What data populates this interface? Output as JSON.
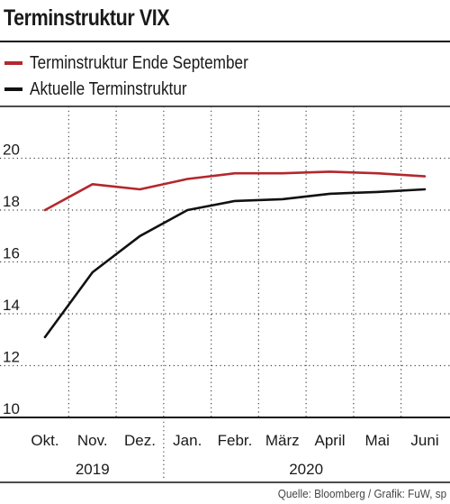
{
  "title": "Terminstruktur VIX",
  "source": "Quelle: Bloomberg / Grafik: FuW, sp",
  "colors": {
    "series_0": "#b3282d",
    "series_1": "#111111",
    "grid": "#444444",
    "axis": "#111111"
  },
  "chart_data": {
    "type": "line",
    "categories": [
      "Okt.",
      "Nov.",
      "Dez.",
      "Jan.",
      "Febr.",
      "März",
      "April",
      "Mai",
      "Juni"
    ],
    "year_labels": [
      {
        "label": "2019",
        "from": "Okt.",
        "to": "Dez."
      },
      {
        "label": "2020",
        "from": "Jan.",
        "to": "Juni"
      }
    ],
    "series": [
      {
        "name": "Terminstruktur Ende September",
        "x": [
          0,
          1,
          2,
          3,
          4,
          5,
          6,
          7,
          8
        ],
        "values": [
          18.0,
          19.0,
          18.8,
          19.2,
          19.42,
          19.42,
          19.48,
          19.42,
          19.3
        ]
      },
      {
        "name": "Aktuelle Terminstruktur",
        "x": [
          0,
          1,
          2,
          3,
          4,
          5,
          6,
          7,
          8
        ],
        "values": [
          13.1,
          15.6,
          17.0,
          18.0,
          18.35,
          18.42,
          18.63,
          18.7,
          18.8
        ]
      }
    ],
    "yticks": [
      10,
      12,
      14,
      16,
      18,
      20
    ],
    "ylim": [
      10,
      22
    ],
    "grid": "dotted",
    "legend": "top-left"
  }
}
